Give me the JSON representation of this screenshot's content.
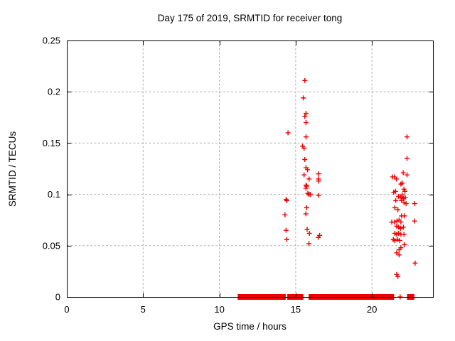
{
  "page": {
    "background_color": "#ffffff",
    "text_color": "#000000"
  },
  "chart_data": {
    "type": "scatter",
    "title": "Day 175 of 2019, SRMTID for receiver tong",
    "xlabel": "GPS time / hours",
    "ylabel": "SRMTID / TECUs",
    "xlim": [
      0,
      24
    ],
    "ylim": [
      0,
      0.25
    ],
    "xticks": [
      {
        "v": 0,
        "label": "0"
      },
      {
        "v": 5,
        "label": "5"
      },
      {
        "v": 10,
        "label": "10"
      },
      {
        "v": 15,
        "label": "15"
      },
      {
        "v": 20,
        "label": "20"
      }
    ],
    "yticks": [
      {
        "v": 0,
        "label": "0"
      },
      {
        "v": 0.05,
        "label": "0.05"
      },
      {
        "v": 0.1,
        "label": "0.1"
      },
      {
        "v": 0.15,
        "label": "0.15"
      },
      {
        "v": 0.2,
        "label": "0.2"
      },
      {
        "v": 0.25,
        "label": "0.25"
      }
    ],
    "grid": true,
    "legend": false,
    "marker": {
      "shape": "plus",
      "color": "#ee0000",
      "size": 7
    },
    "grid_color": "#b0b0b0",
    "border_color": "#000000",
    "points": [
      [
        14.3,
        0.08
      ],
      [
        14.37,
        0.095
      ],
      [
        14.37,
        0.065
      ],
      [
        14.42,
        0.094
      ],
      [
        14.42,
        0.056
      ],
      [
        14.5,
        0.16
      ],
      [
        15.45,
        0.147
      ],
      [
        15.5,
        0.194
      ],
      [
        15.55,
        0.145
      ],
      [
        15.55,
        0.119
      ],
      [
        15.6,
        0.211
      ],
      [
        15.6,
        0.176
      ],
      [
        15.6,
        0.134
      ],
      [
        15.67,
        0.106
      ],
      [
        15.67,
        0.081
      ],
      [
        15.68,
        0.179
      ],
      [
        15.68,
        0.17
      ],
      [
        15.68,
        0.156
      ],
      [
        15.68,
        0.126
      ],
      [
        15.68,
        0.109
      ],
      [
        15.72,
        0.108
      ],
      [
        15.72,
        0.087
      ],
      [
        15.75,
        0.066
      ],
      [
        15.78,
        0.124
      ],
      [
        15.8,
        0.101
      ],
      [
        15.87,
        0.1
      ],
      [
        15.87,
        0.052
      ],
      [
        15.88,
        0.115
      ],
      [
        15.9,
        0.062
      ],
      [
        15.96,
        0.1
      ],
      [
        16.48,
        0.058
      ],
      [
        16.5,
        0.12
      ],
      [
        16.5,
        0.115
      ],
      [
        16.5,
        0.113
      ],
      [
        16.5,
        0.099
      ],
      [
        16.57,
        0.06
      ],
      [
        21.3,
        0.073
      ],
      [
        21.35,
        0.117
      ],
      [
        21.4,
        0.056
      ],
      [
        21.43,
        0.102
      ],
      [
        21.48,
        0.117
      ],
      [
        21.48,
        0.073
      ],
      [
        21.5,
        0.087
      ],
      [
        21.5,
        0.062
      ],
      [
        21.5,
        0.055
      ],
      [
        21.54,
        0.103
      ],
      [
        21.56,
        0.094
      ],
      [
        21.6,
        0.115
      ],
      [
        21.62,
        0.069
      ],
      [
        21.62,
        0.061
      ],
      [
        21.62,
        0.043
      ],
      [
        21.62,
        0.022
      ],
      [
        21.64,
        0.074
      ],
      [
        21.66,
        0.056
      ],
      [
        21.7,
        0.085
      ],
      [
        21.7,
        0.02
      ],
      [
        21.74,
        0.098
      ],
      [
        21.74,
        0.068
      ],
      [
        21.74,
        0.062
      ],
      [
        21.78,
        0.075
      ],
      [
        21.78,
        0.046
      ],
      [
        21.78,
        0.041
      ],
      [
        21.82,
        0.055
      ],
      [
        21.85,
        0.0
      ],
      [
        21.87,
        0.067
      ],
      [
        21.9,
        0.11
      ],
      [
        21.9,
        0.097
      ],
      [
        21.9,
        0.073
      ],
      [
        21.9,
        0.061
      ],
      [
        21.9,
        0.048
      ],
      [
        21.94,
        0.094
      ],
      [
        21.94,
        0.079
      ],
      [
        21.98,
        0.111
      ],
      [
        21.98,
        0.0995
      ],
      [
        22.05,
        0.121
      ],
      [
        22.06,
        0.096
      ],
      [
        22.06,
        0.068
      ],
      [
        22.1,
        0.105
      ],
      [
        22.1,
        0.092
      ],
      [
        22.1,
        0.061
      ],
      [
        22.13,
        0.079
      ],
      [
        22.13,
        0.051
      ],
      [
        22.16,
        0.103
      ],
      [
        22.18,
        0.097
      ],
      [
        22.24,
        0.091
      ],
      [
        22.3,
        0.156
      ],
      [
        22.3,
        0.135
      ],
      [
        22.3,
        0.119
      ],
      [
        22.8,
        0.091
      ],
      [
        22.8,
        0.074
      ],
      [
        22.83,
        0.033
      ]
    ],
    "zero_line_dense_segments": [
      [
        11.2,
        14.35
      ],
      [
        14.45,
        15.5
      ],
      [
        15.85,
        21.45
      ],
      [
        22.3,
        22.78
      ]
    ]
  }
}
